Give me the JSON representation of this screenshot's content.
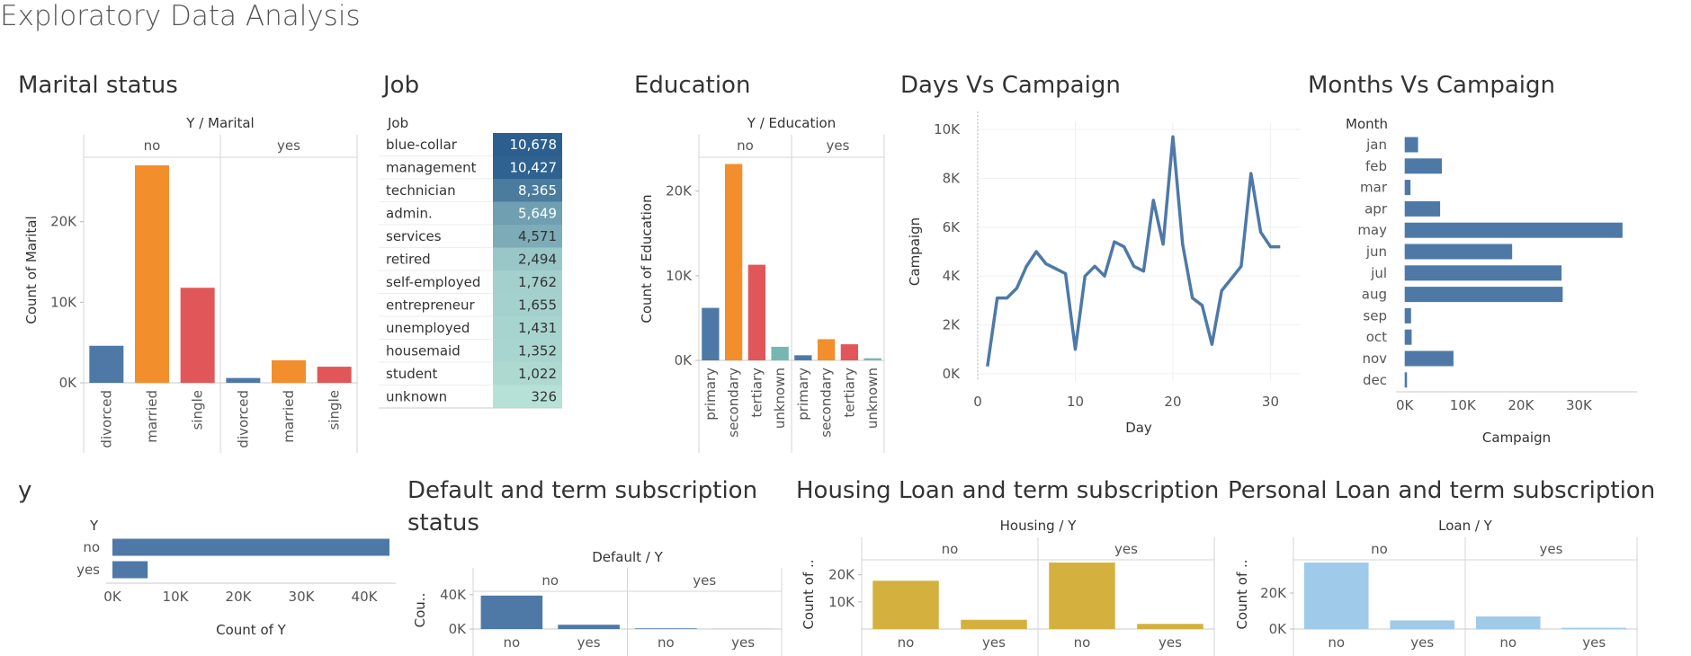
{
  "dashboard": {
    "title": "Exploratory Data Analysis"
  },
  "panels": {
    "marital": "Marital status",
    "job": "Job",
    "education": "Education",
    "days": "Days Vs Campaign",
    "months": "Months Vs Campaign",
    "y": "y",
    "default": "Default and term subscription status",
    "housing": "Housing Loan and term subscription",
    "loan": "Personal Loan and term subscription"
  },
  "colors": {
    "blue": "#4e79a7",
    "orange": "#f28e2b",
    "red": "#e15759",
    "teal": "#76b7b2",
    "gold": "#d4b13f",
    "lightblue": "#9fcae9",
    "job_light": "#b6e2d6",
    "job_dark": "#2c5f8e"
  },
  "chart_data": [
    {
      "id": "marital",
      "type": "bar",
      "header": "Y / Marital",
      "ylabel": "Count of Marital",
      "panes": [
        "no",
        "yes"
      ],
      "categories": [
        "divorced",
        "married",
        "single"
      ],
      "values": {
        "no": [
          4600,
          27000,
          11800
        ],
        "yes": [
          600,
          2800,
          2000
        ]
      },
      "colors": [
        "blue",
        "orange",
        "red"
      ],
      "yticks": [
        0,
        10000,
        20000
      ],
      "ytick_labels": [
        "0K",
        "10K",
        "20K"
      ],
      "ylim": [
        0,
        28000
      ]
    },
    {
      "id": "job",
      "type": "table",
      "header": "Job",
      "rows": [
        [
          "blue-collar",
          "10,678",
          10678
        ],
        [
          "management",
          "10,427",
          10427
        ],
        [
          "technician",
          "8,365",
          8365
        ],
        [
          "admin.",
          "5,649",
          5649
        ],
        [
          "services",
          "4,571",
          4571
        ],
        [
          "retired",
          "2,494",
          2494
        ],
        [
          "self-employed",
          "1,762",
          1762
        ],
        [
          "entrepreneur",
          "1,655",
          1655
        ],
        [
          "unemployed",
          "1,431",
          1431
        ],
        [
          "housemaid",
          "1,352",
          1352
        ],
        [
          "student",
          "1,022",
          1022
        ],
        [
          "unknown",
          "326",
          326
        ]
      ]
    },
    {
      "id": "education",
      "type": "bar",
      "header": "Y / Education",
      "ylabel": "Count of Education",
      "panes": [
        "no",
        "yes"
      ],
      "categories": [
        "primary",
        "secondary",
        "tertiary",
        "unknown"
      ],
      "values": {
        "no": [
          6200,
          23200,
          11300,
          1600
        ],
        "yes": [
          600,
          2500,
          1900,
          250
        ]
      },
      "colors": [
        "blue",
        "orange",
        "red",
        "teal"
      ],
      "yticks": [
        0,
        10000,
        20000
      ],
      "ytick_labels": [
        "0K",
        "10K",
        "20K"
      ],
      "ylim": [
        0,
        24000
      ]
    },
    {
      "id": "days",
      "type": "line",
      "xlabel": "Day",
      "ylabel": "Campaign",
      "x": [
        1,
        2,
        3,
        4,
        5,
        6,
        7,
        8,
        9,
        10,
        11,
        12,
        13,
        14,
        15,
        16,
        17,
        18,
        19,
        20,
        21,
        22,
        23,
        24,
        25,
        26,
        27,
        28,
        29,
        30,
        31
      ],
      "y": [
        300,
        3100,
        3100,
        3500,
        4400,
        5000,
        4500,
        4300,
        4100,
        1000,
        4000,
        4400,
        4000,
        5400,
        5200,
        4400,
        4200,
        7100,
        5300,
        9700,
        5300,
        3100,
        2800,
        1200,
        3400,
        3900,
        4400,
        8200,
        5800,
        5200,
        5200
      ],
      "xticks": [
        0,
        10,
        20,
        30
      ],
      "yticks": [
        0,
        2000,
        4000,
        6000,
        8000,
        10000
      ],
      "ytick_labels": [
        "0K",
        "2K",
        "4K",
        "6K",
        "8K",
        "10K"
      ],
      "xlim": [
        0,
        33
      ],
      "ylim": [
        -300,
        10300
      ]
    },
    {
      "id": "months",
      "type": "bar",
      "orientation": "horizontal",
      "header": "Month",
      "xlabel": "Campaign",
      "categories": [
        "jan",
        "feb",
        "mar",
        "apr",
        "may",
        "jun",
        "jul",
        "aug",
        "sep",
        "oct",
        "nov",
        "dec"
      ],
      "values": [
        2300,
        6400,
        1000,
        6100,
        37500,
        18500,
        27000,
        27200,
        1100,
        1200,
        8400,
        400
      ],
      "xticks": [
        0,
        10000,
        20000,
        30000
      ],
      "xtick_labels": [
        "0K",
        "10K",
        "20K",
        "30K"
      ],
      "xlim": [
        -1500,
        40000
      ]
    },
    {
      "id": "y",
      "type": "bar",
      "orientation": "horizontal",
      "header": "Y",
      "xlabel": "Count of Y",
      "categories": [
        "no",
        "yes"
      ],
      "values": [
        44000,
        5600
      ],
      "xticks": [
        0,
        10000,
        20000,
        30000,
        40000
      ],
      "xtick_labels": [
        "0K",
        "10K",
        "20K",
        "30K",
        "40K"
      ],
      "xlim": [
        -1000,
        45000
      ]
    },
    {
      "id": "default",
      "type": "bar",
      "header": "Default / Y",
      "ylabel": "Cou..",
      "panes": [
        "no",
        "yes"
      ],
      "categories": [
        "no",
        "yes"
      ],
      "values": {
        "no": [
          39000,
          5000
        ],
        "yes": [
          800,
          100
        ]
      },
      "yticks": [
        0,
        40000
      ],
      "ytick_labels": [
        "0K",
        "40K"
      ],
      "ylim": [
        0,
        44000
      ]
    },
    {
      "id": "housing",
      "type": "bar",
      "header": "Housing / Y",
      "ylabel": "Count of ..",
      "panes": [
        "no",
        "yes"
      ],
      "categories": [
        "no",
        "yes"
      ],
      "values": {
        "no": [
          17800,
          3400
        ],
        "yes": [
          24500,
          1900
        ]
      },
      "yticks": [
        10000,
        20000
      ],
      "ytick_labels": [
        "10K",
        "20K"
      ],
      "ylim": [
        0,
        25500
      ]
    },
    {
      "id": "loan",
      "type": "bar",
      "header": "Loan / Y",
      "ylabel": "Count of ..",
      "panes": [
        "no",
        "yes"
      ],
      "categories": [
        "no",
        "yes"
      ],
      "values": {
        "no": [
          37000,
          4800
        ],
        "yes": [
          7000,
          700
        ]
      },
      "yticks": [
        0,
        20000
      ],
      "ytick_labels": [
        "0K",
        "20K"
      ],
      "ylim": [
        0,
        38500
      ]
    }
  ]
}
